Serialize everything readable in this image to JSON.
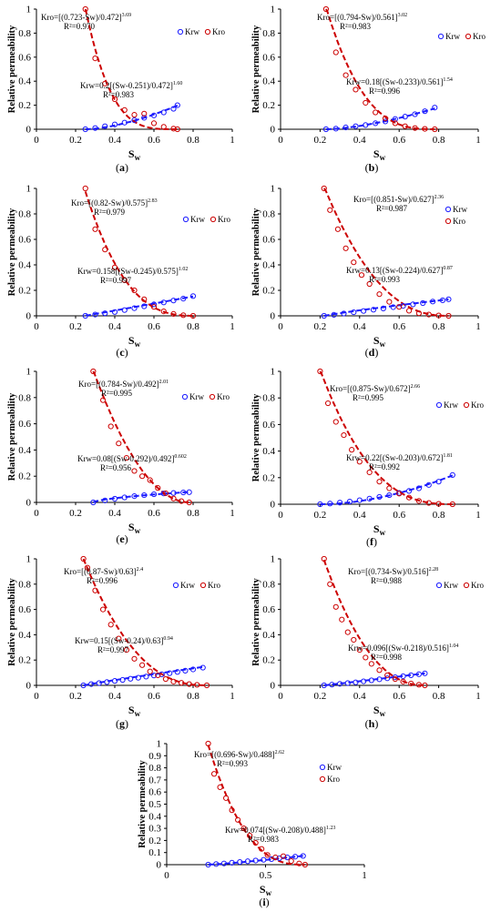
{
  "chart_data": [
    {
      "id": "a",
      "type": "scatter",
      "label": "a",
      "xlabel": "S",
      "xlabel_sub": "w",
      "ylabel": "Relative permeability",
      "xlim": [
        0,
        1
      ],
      "ylim": [
        0,
        1
      ],
      "xticks": [
        "0",
        "0.2",
        "0.4",
        "0.6",
        "0.8",
        "1"
      ],
      "yticks": [
        "0",
        "0.2",
        "0.4",
        "0.6",
        "0.8",
        "1"
      ],
      "legend_layout": "row",
      "series": [
        {
          "name": "Krw",
          "color": "#1a1aff",
          "x": [
            0.25,
            0.3,
            0.35,
            0.4,
            0.45,
            0.5,
            0.55,
            0.6,
            0.65,
            0.7,
            0.72
          ],
          "y": [
            0.0,
            0.01,
            0.025,
            0.04,
            0.055,
            0.075,
            0.095,
            0.115,
            0.14,
            0.17,
            0.2
          ]
        },
        {
          "name": "Kro",
          "color": "#cc0000",
          "x": [
            0.25,
            0.3,
            0.35,
            0.4,
            0.45,
            0.5,
            0.55,
            0.6,
            0.65,
            0.7,
            0.72
          ],
          "y": [
            1.0,
            0.59,
            0.38,
            0.25,
            0.16,
            0.12,
            0.13,
            0.05,
            0.02,
            0.005,
            0.0
          ]
        }
      ],
      "fit_krw": {
        "a": 0.2,
        "swc": 0.251,
        "d": 0.472,
        "n": 1.6
      },
      "fit_kro": {
        "s": 0.723,
        "d": 0.472,
        "n": 3.69
      },
      "kro_eq": {
        "text": "Kro=[(0.723-Sw)/0.472]",
        "exp": "3.69",
        "r2": "R²=0.970"
      },
      "krw_eq": {
        "text": "Krw=0.2[(Sw-0.251)/0.472]",
        "exp": "1.60",
        "r2": "R²=0.983"
      }
    },
    {
      "id": "b",
      "type": "scatter",
      "label": "b",
      "xlabel": "S",
      "xlabel_sub": "w",
      "ylabel": "Relative permeability",
      "xlim": [
        0,
        1
      ],
      "ylim": [
        0,
        1
      ],
      "xticks": [
        "0",
        "0.2",
        "0.4",
        "0.6",
        "0.8",
        "1"
      ],
      "yticks": [
        "0",
        "0.2",
        "0.4",
        "0.6",
        "0.8",
        "1"
      ],
      "legend_layout": "row",
      "series": [
        {
          "name": "Krw",
          "color": "#1a1aff",
          "x": [
            0.23,
            0.28,
            0.33,
            0.38,
            0.43,
            0.48,
            0.53,
            0.58,
            0.63,
            0.68,
            0.73,
            0.78
          ],
          "y": [
            0.0,
            0.005,
            0.015,
            0.025,
            0.035,
            0.05,
            0.065,
            0.085,
            0.105,
            0.125,
            0.15,
            0.18
          ]
        },
        {
          "name": "Kro",
          "color": "#cc0000",
          "x": [
            0.23,
            0.28,
            0.33,
            0.38,
            0.43,
            0.48,
            0.53,
            0.58,
            0.63,
            0.68,
            0.73,
            0.78
          ],
          "y": [
            1.0,
            0.64,
            0.45,
            0.33,
            0.22,
            0.14,
            0.09,
            0.05,
            0.025,
            0.01,
            0.003,
            0.0
          ]
        }
      ],
      "fit_krw": {
        "a": 0.18,
        "swc": 0.233,
        "d": 0.561,
        "n": 1.54
      },
      "fit_kro": {
        "s": 0.794,
        "d": 0.561,
        "n": 3.02
      },
      "kro_eq": {
        "text": "Kro=[(0.794-Sw)/0.561]",
        "exp": "3.02",
        "r2": "R²=0.983"
      },
      "krw_eq": {
        "text": "Krw=0.18[(Sw-0.233)/0.561]",
        "exp": "1.54",
        "r2": "R²=0.996"
      }
    },
    {
      "id": "c",
      "type": "scatter",
      "label": "c",
      "xlabel": "S",
      "xlabel_sub": "w",
      "ylabel": "Relative permeability",
      "xlim": [
        0,
        1
      ],
      "ylim": [
        0,
        1
      ],
      "xticks": [
        "0",
        "0.2",
        "0.4",
        "0.6",
        "0.8",
        "1"
      ],
      "yticks": [
        "0",
        "0.2",
        "0.4",
        "0.6",
        "0.8",
        "1"
      ],
      "legend_layout": "row",
      "series": [
        {
          "name": "Krw",
          "color": "#1a1aff",
          "x": [
            0.25,
            0.3,
            0.35,
            0.4,
            0.45,
            0.5,
            0.55,
            0.6,
            0.65,
            0.7,
            0.75,
            0.8
          ],
          "y": [
            0.0,
            0.01,
            0.02,
            0.03,
            0.045,
            0.06,
            0.075,
            0.09,
            0.105,
            0.12,
            0.135,
            0.155
          ]
        },
        {
          "name": "Kro",
          "color": "#cc0000",
          "x": [
            0.25,
            0.3,
            0.35,
            0.4,
            0.45,
            0.5,
            0.55,
            0.6,
            0.65,
            0.7,
            0.75,
            0.8
          ],
          "y": [
            1.0,
            0.68,
            0.52,
            0.38,
            0.28,
            0.2,
            0.13,
            0.07,
            0.035,
            0.015,
            0.005,
            0.0
          ]
        }
      ],
      "fit_krw": {
        "a": 0.158,
        "swc": 0.245,
        "d": 0.575,
        "n": 1.02
      },
      "fit_kro": {
        "s": 0.82,
        "d": 0.575,
        "n": 2.83
      },
      "kro_eq": {
        "text": "Kro=[(0.82-Sw)/0.575]",
        "exp": "2.83",
        "r2": "R²=0.979"
      },
      "krw_eq": {
        "text": "Krw=0.158[(Sw-0.245)/0.575]",
        "exp": "1.02",
        "r2": "R²=0.997"
      }
    },
    {
      "id": "d",
      "type": "scatter",
      "label": "d",
      "xlabel": "S",
      "xlabel_sub": "w",
      "ylabel": "Relative permeability",
      "xlim": [
        0,
        1
      ],
      "ylim": [
        0,
        1
      ],
      "xticks": [
        "0",
        "0.2",
        "0.4",
        "0.6",
        "0.8",
        "1"
      ],
      "yticks": [
        "0",
        "0.2",
        "0.4",
        "0.6",
        "0.8",
        "1"
      ],
      "legend_layout": "column",
      "series": [
        {
          "name": "Krw",
          "color": "#1a1aff",
          "x": [
            0.22,
            0.27,
            0.32,
            0.37,
            0.42,
            0.47,
            0.52,
            0.57,
            0.62,
            0.67,
            0.72,
            0.77,
            0.82,
            0.85
          ],
          "y": [
            0.0,
            0.008,
            0.018,
            0.028,
            0.038,
            0.048,
            0.058,
            0.068,
            0.078,
            0.09,
            0.1,
            0.112,
            0.122,
            0.13
          ]
        },
        {
          "name": "Kro",
          "color": "#cc0000",
          "x": [
            0.22,
            0.25,
            0.29,
            0.33,
            0.37,
            0.41,
            0.45,
            0.5,
            0.55,
            0.6,
            0.65,
            0.7,
            0.75,
            0.8,
            0.85
          ],
          "y": [
            1.0,
            0.83,
            0.68,
            0.53,
            0.42,
            0.32,
            0.25,
            0.17,
            0.11,
            0.07,
            0.04,
            0.02,
            0.01,
            0.003,
            0.0
          ]
        }
      ],
      "fit_krw": {
        "a": 0.13,
        "swc": 0.224,
        "d": 0.627,
        "n": 0.87
      },
      "fit_kro": {
        "s": 0.851,
        "d": 0.627,
        "n": 2.36
      },
      "kro_eq": {
        "text": "Kro=[(0.851-Sw)/0.627]",
        "exp": "2.36",
        "r2": "R²=0.987"
      },
      "krw_eq": {
        "text": "Krw=0.13[(Sw-0.224)/0.627]",
        "exp": "0.87",
        "r2": "R²=0.993"
      }
    },
    {
      "id": "e",
      "type": "scatter",
      "label": "e",
      "xlabel": "S",
      "xlabel_sub": "w",
      "ylabel": "Relative permeability",
      "xlim": [
        0,
        1
      ],
      "ylim": [
        0,
        1
      ],
      "xticks": [
        "0",
        "0.2",
        "0.4",
        "0.6",
        "0.8",
        "1"
      ],
      "yticks": [
        "0",
        "0.2",
        "0.4",
        "0.6",
        "0.8",
        "1"
      ],
      "legend_layout": "row",
      "series": [
        {
          "name": "Krw",
          "color": "#1a1aff",
          "x": [
            0.29,
            0.35,
            0.4,
            0.45,
            0.5,
            0.55,
            0.6,
            0.65,
            0.7,
            0.75,
            0.78
          ],
          "y": [
            0.0,
            0.015,
            0.028,
            0.038,
            0.048,
            0.055,
            0.062,
            0.068,
            0.072,
            0.076,
            0.078
          ]
        },
        {
          "name": "Kro",
          "color": "#cc0000",
          "x": [
            0.29,
            0.34,
            0.38,
            0.42,
            0.46,
            0.5,
            0.54,
            0.58,
            0.62,
            0.66,
            0.7,
            0.74,
            0.78
          ],
          "y": [
            1.0,
            0.78,
            0.58,
            0.45,
            0.34,
            0.24,
            0.2,
            0.17,
            0.11,
            0.07,
            0.03,
            0.01,
            0.0
          ]
        }
      ],
      "fit_krw": {
        "a": 0.08,
        "swc": 0.292,
        "d": 0.492,
        "n": 0.602
      },
      "fit_kro": {
        "s": 0.784,
        "d": 0.492,
        "n": 2.01
      },
      "kro_eq": {
        "text": "Kro=[(0.784-Sw)/0.492]",
        "exp": "2.01",
        "r2": "R²=0.995"
      },
      "krw_eq": {
        "text": "Krw=0.08[(Sw-0.292)/0.492]",
        "exp": "0.602",
        "r2": "R²=0.956"
      }
    },
    {
      "id": "f",
      "type": "scatter",
      "label": "f",
      "xlabel": "S",
      "xlabel_sub": "w",
      "ylabel": "Relative permeability",
      "xlim": [
        0,
        1
      ],
      "ylim": [
        0,
        1
      ],
      "xticks": [
        "0",
        "0.2",
        "0.4",
        "0.6",
        "0.8",
        "1"
      ],
      "yticks": [
        "0",
        "0.2",
        "0.4",
        "0.6",
        "0.8",
        "1"
      ],
      "legend_layout": "row",
      "series": [
        {
          "name": "Krw",
          "color": "#1a1aff",
          "x": [
            0.2,
            0.25,
            0.3,
            0.35,
            0.4,
            0.45,
            0.5,
            0.55,
            0.6,
            0.65,
            0.7,
            0.75,
            0.8,
            0.87
          ],
          "y": [
            0.0,
            0.005,
            0.012,
            0.02,
            0.03,
            0.042,
            0.055,
            0.068,
            0.085,
            0.1,
            0.12,
            0.145,
            0.17,
            0.22
          ]
        },
        {
          "name": "Kro",
          "color": "#cc0000",
          "x": [
            0.2,
            0.24,
            0.28,
            0.32,
            0.36,
            0.4,
            0.45,
            0.5,
            0.55,
            0.6,
            0.65,
            0.7,
            0.75,
            0.8,
            0.87
          ],
          "y": [
            1.0,
            0.76,
            0.62,
            0.52,
            0.41,
            0.32,
            0.24,
            0.17,
            0.12,
            0.08,
            0.05,
            0.025,
            0.01,
            0.003,
            0.0
          ]
        }
      ],
      "fit_krw": {
        "a": 0.22,
        "swc": 0.203,
        "d": 0.672,
        "n": 1.81
      },
      "fit_kro": {
        "s": 0.875,
        "d": 0.672,
        "n": 2.66
      },
      "kro_eq": {
        "text": "Kro=[(0.875-Sw)/0.672]",
        "exp": "2.66",
        "r2": "R²=0.995"
      },
      "krw_eq": {
        "text": "Krw=0.22[(Sw-0.203)/0.672]",
        "exp": "1.81",
        "r2": "R²=0.992"
      }
    },
    {
      "id": "g",
      "type": "scatter",
      "label": "g",
      "xlabel": "S",
      "xlabel_sub": "w",
      "ylabel": "Relative permeability",
      "xlim": [
        0,
        1
      ],
      "ylim": [
        0,
        1
      ],
      "xticks": [
        "0",
        "0.2",
        "0.4",
        "0.6",
        "0.8",
        "1"
      ],
      "yticks": [
        "0",
        "0.2",
        "0.4",
        "0.6",
        "0.8",
        "1"
      ],
      "legend_layout": "row",
      "series": [
        {
          "name": "Krw",
          "color": "#1a1aff",
          "x": [
            0.24,
            0.28,
            0.32,
            0.36,
            0.4,
            0.44,
            0.48,
            0.52,
            0.56,
            0.6,
            0.64,
            0.68,
            0.72,
            0.76,
            0.8,
            0.85
          ],
          "y": [
            0.0,
            0.01,
            0.018,
            0.026,
            0.035,
            0.043,
            0.052,
            0.06,
            0.069,
            0.078,
            0.087,
            0.096,
            0.106,
            0.116,
            0.126,
            0.14
          ]
        },
        {
          "name": "Kro",
          "color": "#cc0000",
          "x": [
            0.24,
            0.26,
            0.3,
            0.34,
            0.38,
            0.42,
            0.46,
            0.5,
            0.54,
            0.58,
            0.62,
            0.66,
            0.7,
            0.74,
            0.78,
            0.82,
            0.87
          ],
          "y": [
            1.0,
            0.93,
            0.75,
            0.6,
            0.48,
            0.37,
            0.28,
            0.21,
            0.16,
            0.11,
            0.08,
            0.05,
            0.03,
            0.02,
            0.01,
            0.004,
            0.0
          ]
        }
      ],
      "fit_krw": {
        "a": 0.15,
        "swc": 0.24,
        "d": 0.63,
        "n": 0.94
      },
      "fit_kro": {
        "s": 0.87,
        "d": 0.63,
        "n": 2.4
      },
      "kro_eq": {
        "text": "Kro=[(0.87-Sw)/0.63]",
        "exp": "2.4",
        "r2": "R²=0.996"
      },
      "krw_eq": {
        "text": "Krw=0.15[(Sw-0.24)/0.63]",
        "exp": "0.94",
        "r2": "R²=0.997"
      }
    },
    {
      "id": "h",
      "type": "scatter",
      "label": "h",
      "xlabel": "S",
      "xlabel_sub": "w",
      "ylabel": "Relative permeability",
      "xlim": [
        0,
        1
      ],
      "ylim": [
        0,
        1
      ],
      "xticks": [
        "0",
        "0.2",
        "0.4",
        "0.6",
        "0.8",
        "1"
      ],
      "yticks": [
        "0",
        "0.2",
        "0.4",
        "0.6",
        "0.8",
        "1"
      ],
      "legend_layout": "row",
      "series": [
        {
          "name": "Krw",
          "color": "#1a1aff",
          "x": [
            0.22,
            0.26,
            0.3,
            0.34,
            0.38,
            0.42,
            0.46,
            0.5,
            0.54,
            0.58,
            0.62,
            0.66,
            0.7,
            0.73
          ],
          "y": [
            0.0,
            0.006,
            0.012,
            0.018,
            0.024,
            0.032,
            0.04,
            0.048,
            0.056,
            0.064,
            0.072,
            0.08,
            0.088,
            0.095
          ]
        },
        {
          "name": "Kro",
          "color": "#cc0000",
          "x": [
            0.22,
            0.25,
            0.28,
            0.31,
            0.34,
            0.37,
            0.4,
            0.43,
            0.46,
            0.5,
            0.54,
            0.58,
            0.62,
            0.66,
            0.7,
            0.73
          ],
          "y": [
            1.0,
            0.8,
            0.62,
            0.52,
            0.42,
            0.36,
            0.28,
            0.22,
            0.17,
            0.12,
            0.08,
            0.05,
            0.03,
            0.015,
            0.005,
            0.0
          ]
        }
      ],
      "fit_krw": {
        "a": 0.096,
        "swc": 0.218,
        "d": 0.516,
        "n": 1.04
      },
      "fit_kro": {
        "s": 0.734,
        "d": 0.516,
        "n": 2.28
      },
      "kro_eq": {
        "text": "Kro=[(0.734-Sw)/0.516]",
        "exp": "2.28",
        "r2": "R²=0.988"
      },
      "krw_eq": {
        "text": "Krw=0.096[(Sw-0.218)/0.516]",
        "exp": "1.04",
        "r2": "R²=0.998"
      }
    },
    {
      "id": "i",
      "type": "scatter",
      "label": "i",
      "xlabel": "S",
      "xlabel_sub": "w",
      "ylabel": "Relative permeability",
      "xlim": [
        0,
        1
      ],
      "ylim": [
        0,
        1
      ],
      "xticks": [
        "0",
        "0.5",
        "1"
      ],
      "yticks": [
        "0",
        "0.1",
        "0.2",
        "0.3",
        "0.4",
        "0.5",
        "0.6",
        "0.7",
        "0.8",
        "0.9",
        "1"
      ],
      "legend_layout": "column",
      "series": [
        {
          "name": "Krw",
          "color": "#1a1aff",
          "x": [
            0.21,
            0.25,
            0.29,
            0.33,
            0.37,
            0.41,
            0.45,
            0.49,
            0.53,
            0.57,
            0.61,
            0.65,
            0.69
          ],
          "y": [
            0.0,
            0.005,
            0.01,
            0.016,
            0.022,
            0.028,
            0.034,
            0.04,
            0.046,
            0.053,
            0.06,
            0.066,
            0.072
          ]
        },
        {
          "name": "Kro",
          "color": "#cc0000",
          "x": [
            0.21,
            0.24,
            0.27,
            0.3,
            0.33,
            0.36,
            0.39,
            0.42,
            0.45,
            0.48,
            0.51,
            0.55,
            0.59,
            0.63,
            0.67,
            0.7
          ],
          "y": [
            1.0,
            0.75,
            0.64,
            0.55,
            0.45,
            0.37,
            0.3,
            0.24,
            0.18,
            0.13,
            0.08,
            0.06,
            0.07,
            0.03,
            0.01,
            0.0
          ]
        }
      ],
      "fit_krw": {
        "a": 0.074,
        "swc": 0.208,
        "d": 0.488,
        "n": 1.23
      },
      "fit_kro": {
        "s": 0.696,
        "d": 0.488,
        "n": 2.62
      },
      "kro_eq": {
        "text": "Kro=[(0.696-Sw)/0.488]",
        "exp": "2.62",
        "r2": "R²=0.993"
      },
      "krw_eq": {
        "text": "Krw=0.074[(Sw-0.208)/0.488]",
        "exp": "1.23",
        "r2": "R²=0.983"
      }
    }
  ]
}
